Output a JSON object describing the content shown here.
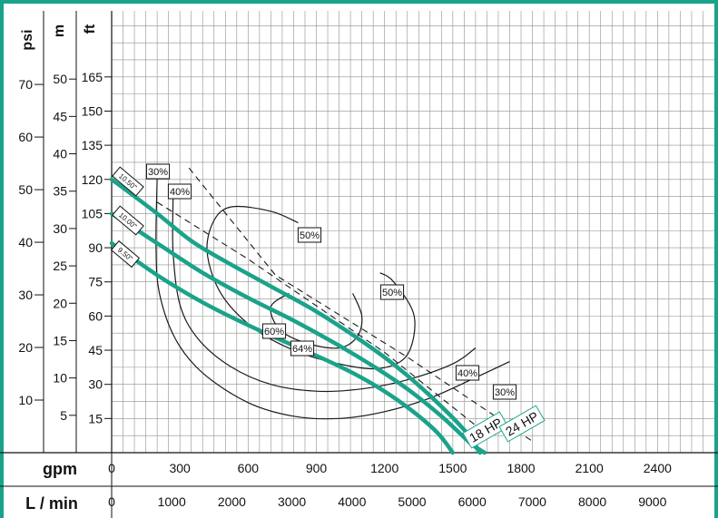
{
  "chart_data": {
    "type": "line",
    "x_axis": {
      "label": "gpm",
      "ticks": [
        "0",
        "300",
        "600",
        "900",
        "1200",
        "1500",
        "1800",
        "2100",
        "2400"
      ],
      "range": [
        0,
        2650
      ]
    },
    "secondary_x_axis": {
      "label": "L / min",
      "ticks": [
        "0",
        "1000",
        "2000",
        "3000",
        "4000",
        "5000",
        "6000",
        "7000",
        "8000",
        "9000"
      ]
    },
    "y_axis_ft": {
      "label": "ft",
      "ticks": [
        "15",
        "30",
        "45",
        "60",
        "75",
        "90",
        "105",
        "120",
        "135",
        "150",
        "165"
      ],
      "range": [
        0,
        194
      ]
    },
    "y_axis_m": {
      "label": "m",
      "ticks": [
        "5",
        "10",
        "15",
        "20",
        "25",
        "30",
        "35",
        "40",
        "45",
        "50"
      ]
    },
    "y_axis_psi": {
      "label": "psi",
      "ticks": [
        "10",
        "20",
        "30",
        "40",
        "50",
        "60",
        "70"
      ]
    },
    "impeller_curves": [
      {
        "name": "10.50\"",
        "color": "#1aa38a",
        "points": [
          [
            0,
            120
          ],
          [
            200,
            105
          ],
          [
            350,
            93
          ],
          [
            500,
            84
          ],
          [
            700,
            73
          ],
          [
            900,
            62
          ],
          [
            1100,
            49
          ],
          [
            1250,
            38
          ],
          [
            1400,
            25
          ],
          [
            1550,
            10
          ],
          [
            1620,
            0
          ]
        ]
      },
      {
        "name": "10.00\"",
        "color": "#1aa38a",
        "points": [
          [
            0,
            105
          ],
          [
            200,
            92
          ],
          [
            400,
            79
          ],
          [
            600,
            68
          ],
          [
            800,
            58
          ],
          [
            1000,
            47
          ],
          [
            1150,
            38
          ],
          [
            1300,
            28
          ],
          [
            1450,
            16
          ],
          [
            1580,
            4
          ],
          [
            1640,
            0
          ]
        ]
      },
      {
        "name": "9.50\"",
        "color": "#1aa38a",
        "points": [
          [
            0,
            92
          ],
          [
            200,
            78
          ],
          [
            400,
            66
          ],
          [
            600,
            56
          ],
          [
            800,
            47
          ],
          [
            1000,
            38
          ],
          [
            1150,
            30
          ],
          [
            1300,
            20
          ],
          [
            1430,
            9
          ],
          [
            1500,
            0
          ]
        ]
      }
    ],
    "efficiency_curves": [
      {
        "name": "30%",
        "points": [
          [
            200,
            120
          ],
          [
            195,
            90
          ],
          [
            210,
            70
          ],
          [
            280,
            50
          ],
          [
            400,
            35
          ],
          [
            600,
            22
          ],
          [
            800,
            16
          ],
          [
            1000,
            15
          ],
          [
            1200,
            18
          ],
          [
            1400,
            24
          ],
          [
            1600,
            33
          ],
          [
            1750,
            40
          ]
        ]
      },
      {
        "name": "40%",
        "points": [
          [
            270,
            112
          ],
          [
            270,
            88
          ],
          [
            300,
            65
          ],
          [
            380,
            50
          ],
          [
            520,
            38
          ],
          [
            700,
            30
          ],
          [
            900,
            27
          ],
          [
            1100,
            28
          ],
          [
            1300,
            32
          ],
          [
            1500,
            39
          ],
          [
            1600,
            46
          ]
        ]
      },
      {
        "name": "50%",
        "points": [
          [
            820,
            101
          ],
          [
            700,
            106
          ],
          [
            530,
            108
          ],
          [
            450,
            102
          ],
          [
            420,
            88
          ],
          [
            480,
            70
          ],
          [
            620,
            55
          ],
          [
            800,
            45
          ],
          [
            1000,
            39
          ],
          [
            1180,
            37
          ],
          [
            1300,
            43
          ],
          [
            1330,
            60
          ],
          [
            1240,
            75
          ],
          [
            1180,
            79
          ]
        ]
      },
      {
        "name": "60%",
        "points": [
          [
            780,
            70
          ],
          [
            700,
            64
          ],
          [
            740,
            54
          ],
          [
            860,
            48
          ],
          [
            1000,
            46
          ],
          [
            1080,
            51
          ],
          [
            1100,
            60
          ],
          [
            1060,
            70
          ]
        ]
      },
      {
        "name": "64%",
        "points": [
          [
            880,
            58
          ]
        ]
      }
    ],
    "max_hp_lines": [
      {
        "name": "24 HP",
        "points": [
          [
            340,
            125
          ],
          [
            720,
            78
          ],
          [
            1300,
            42
          ],
          [
            1850,
            5
          ]
        ]
      },
      {
        "name": "18 HP",
        "points": [
          [
            200,
            110
          ],
          [
            600,
            85
          ],
          [
            1200,
            44
          ],
          [
            1650,
            8
          ]
        ]
      }
    ],
    "impeller_labels": [
      "10.50\"",
      "10.00\"",
      "9.50\""
    ],
    "efficiency_labels": [
      "30%",
      "40%",
      "50%",
      "50%",
      "60%",
      "64%",
      "40%",
      "30%"
    ],
    "hp_labels": [
      "18 HP",
      "24 HP"
    ],
    "grid": true
  },
  "colors": {
    "accent": "#1aa38a",
    "grid": "#8f8f8f",
    "axis": "#111111"
  }
}
